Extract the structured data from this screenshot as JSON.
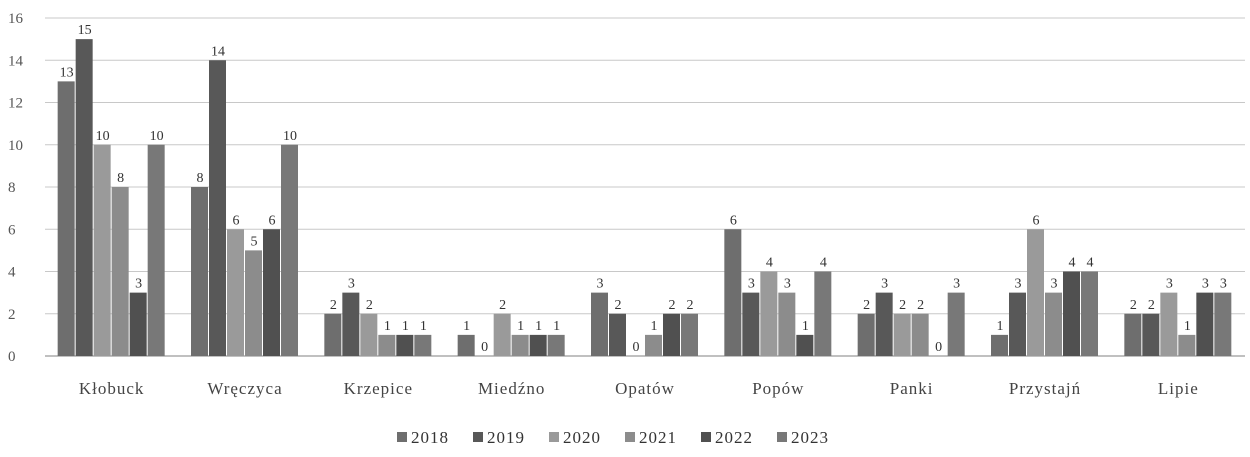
{
  "chart_data": {
    "type": "bar",
    "categories": [
      "Kłobuck",
      "Wręczyca",
      "Krzepice",
      "Miedźno",
      "Opatów",
      "Popów",
      "Panki",
      "Przystajń",
      "Lipie"
    ],
    "series": [
      {
        "name": "2018",
        "color": "#6e6e6e",
        "values": [
          13,
          8,
          2,
          1,
          3,
          6,
          2,
          1,
          2
        ]
      },
      {
        "name": "2019",
        "color": "#585858",
        "values": [
          15,
          14,
          3,
          0,
          2,
          3,
          3,
          3,
          2
        ]
      },
      {
        "name": "2020",
        "color": "#9a9a9a",
        "values": [
          10,
          6,
          2,
          2,
          0,
          4,
          2,
          6,
          3
        ]
      },
      {
        "name": "2021",
        "color": "#8c8c8c",
        "values": [
          8,
          5,
          1,
          1,
          1,
          3,
          2,
          3,
          1
        ]
      },
      {
        "name": "2022",
        "color": "#505050",
        "values": [
          3,
          6,
          1,
          1,
          2,
          1,
          0,
          4,
          3
        ]
      },
      {
        "name": "2023",
        "color": "#787878",
        "values": [
          10,
          10,
          1,
          1,
          2,
          4,
          3,
          4,
          3
        ]
      }
    ],
    "ylim": [
      0,
      16
    ],
    "yticks": [
      0,
      2,
      4,
      6,
      8,
      10,
      12,
      14,
      16
    ],
    "grid": true,
    "legend_position": "bottom",
    "data_labels": true
  }
}
